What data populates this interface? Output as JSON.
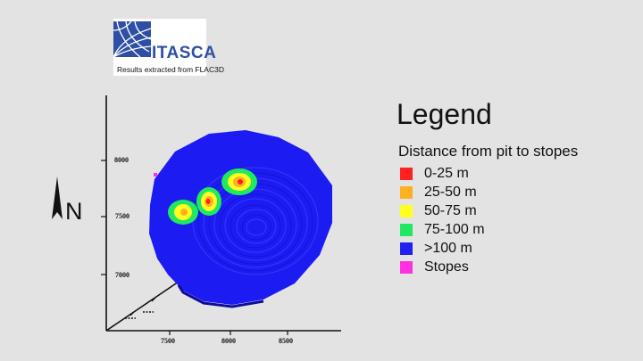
{
  "logo": {
    "name": "ITASCA",
    "caption": "Results extracted from FLAC3D"
  },
  "axes": {
    "y_ticks": [
      "8000",
      "7500",
      "7000"
    ],
    "x_ticks": [
      "7500",
      "8000",
      "8500"
    ],
    "depth_ticks": [
      "",
      ""
    ]
  },
  "north": {
    "letter": "N"
  },
  "legend": {
    "title": "Legend",
    "subtitle": "Distance from pit to stopes",
    "items": [
      {
        "label": "0-25 m",
        "color": "#ff2020"
      },
      {
        "label": "25-50 m",
        "color": "#ffb020"
      },
      {
        "label": "50-75 m",
        "color": "#ffff20"
      },
      {
        "label": "75-100 m",
        "color": "#20e860"
      },
      {
        "label": ">100 m",
        "color": "#2020f0"
      },
      {
        "label": "Stopes",
        "color": "#ff30e0"
      }
    ]
  },
  "colors": {
    "background": "#e3e3e3",
    "pit": "#1c1cf2",
    "brand": "#2e4fa3"
  }
}
